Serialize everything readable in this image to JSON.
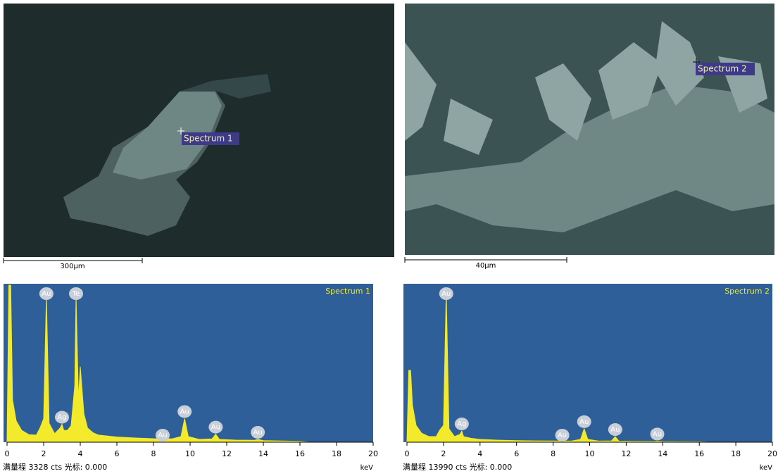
{
  "images": [
    {
      "label": "Spectrum 1",
      "scale_bar": "300μm"
    },
    {
      "label": "Spectrum 2",
      "scale_bar": "40μm"
    }
  ],
  "chart_data": [
    {
      "type": "line",
      "title": "Spectrum 1",
      "x_label": "keV",
      "footer": "满量程 3328 cts 光标: 0.000",
      "color": "#f2ea2a",
      "x": [
        0,
        0.1,
        0.2,
        0.3,
        0.5,
        0.8,
        1.2,
        1.6,
        1.8,
        2.0,
        2.15,
        2.3,
        2.6,
        2.9,
        3.0,
        3.1,
        3.3,
        3.5,
        3.7,
        3.77,
        3.9,
        4.0,
        4.2,
        4.4,
        4.7,
        5.0,
        6,
        7,
        8,
        9,
        9.5,
        9.7,
        9.9,
        10.5,
        11.2,
        11.4,
        11.6,
        12.5,
        13.5,
        13.7,
        14,
        15,
        16,
        16.5
      ],
      "values": [
        0,
        3328,
        3328,
        900,
        450,
        250,
        160,
        150,
        300,
        500,
        3100,
        400,
        180,
        300,
        380,
        250,
        250,
        350,
        1200,
        3100,
        900,
        1600,
        600,
        300,
        200,
        150,
        110,
        90,
        75,
        70,
        120,
        500,
        120,
        60,
        70,
        170,
        60,
        45,
        40,
        60,
        35,
        25,
        20,
        0
      ],
      "xlim": [
        0,
        20
      ],
      "xticks": [
        0,
        2,
        4,
        6,
        8,
        10,
        12,
        14,
        16,
        18,
        20
      ],
      "ylim": [
        0,
        3328
      ],
      "annotations": [
        {
          "text": "Au",
          "x": 2.15
        },
        {
          "text": "Te",
          "x": 3.77
        },
        {
          "text": "Ag",
          "x": 3.0
        },
        {
          "text": "Au",
          "x": 8.5
        },
        {
          "text": "Au",
          "x": 9.7
        },
        {
          "text": "Au",
          "x": 11.4
        },
        {
          "text": "Au",
          "x": 13.7
        }
      ]
    },
    {
      "type": "line",
      "title": "Spectrum 2",
      "x_label": "keV",
      "footer": "满量程 13990 cts 光标: 0.000",
      "color": "#f2ea2a",
      "x": [
        0,
        0.1,
        0.2,
        0.3,
        0.5,
        0.8,
        1.2,
        1.6,
        1.8,
        2.0,
        2.15,
        2.3,
        2.6,
        2.9,
        3.0,
        3.1,
        3.5,
        4,
        5,
        6,
        7,
        8,
        9,
        9.5,
        9.7,
        9.9,
        10.5,
        11.2,
        11.4,
        11.6,
        12.5,
        13.5,
        13.7,
        14,
        15,
        16,
        16.5
      ],
      "values": [
        0,
        6400,
        6400,
        3300,
        1500,
        800,
        500,
        500,
        1100,
        1500,
        13500,
        1200,
        500,
        700,
        1000,
        500,
        350,
        250,
        180,
        140,
        120,
        110,
        100,
        250,
        1200,
        250,
        100,
        120,
        500,
        100,
        80,
        70,
        100,
        60,
        50,
        40,
        0
      ],
      "xlim": [
        0,
        20
      ],
      "xticks": [
        0,
        2,
        4,
        6,
        8,
        10,
        12,
        14,
        16,
        18,
        20
      ],
      "ylim": [
        0,
        13990
      ],
      "annotations": [
        {
          "text": "Au",
          "x": 2.15
        },
        {
          "text": "Ag",
          "x": 3.0
        },
        {
          "text": "Au",
          "x": 8.5
        },
        {
          "text": "Au",
          "x": 9.7
        },
        {
          "text": "Au",
          "x": 11.4
        },
        {
          "text": "Au",
          "x": 13.7
        }
      ]
    }
  ]
}
